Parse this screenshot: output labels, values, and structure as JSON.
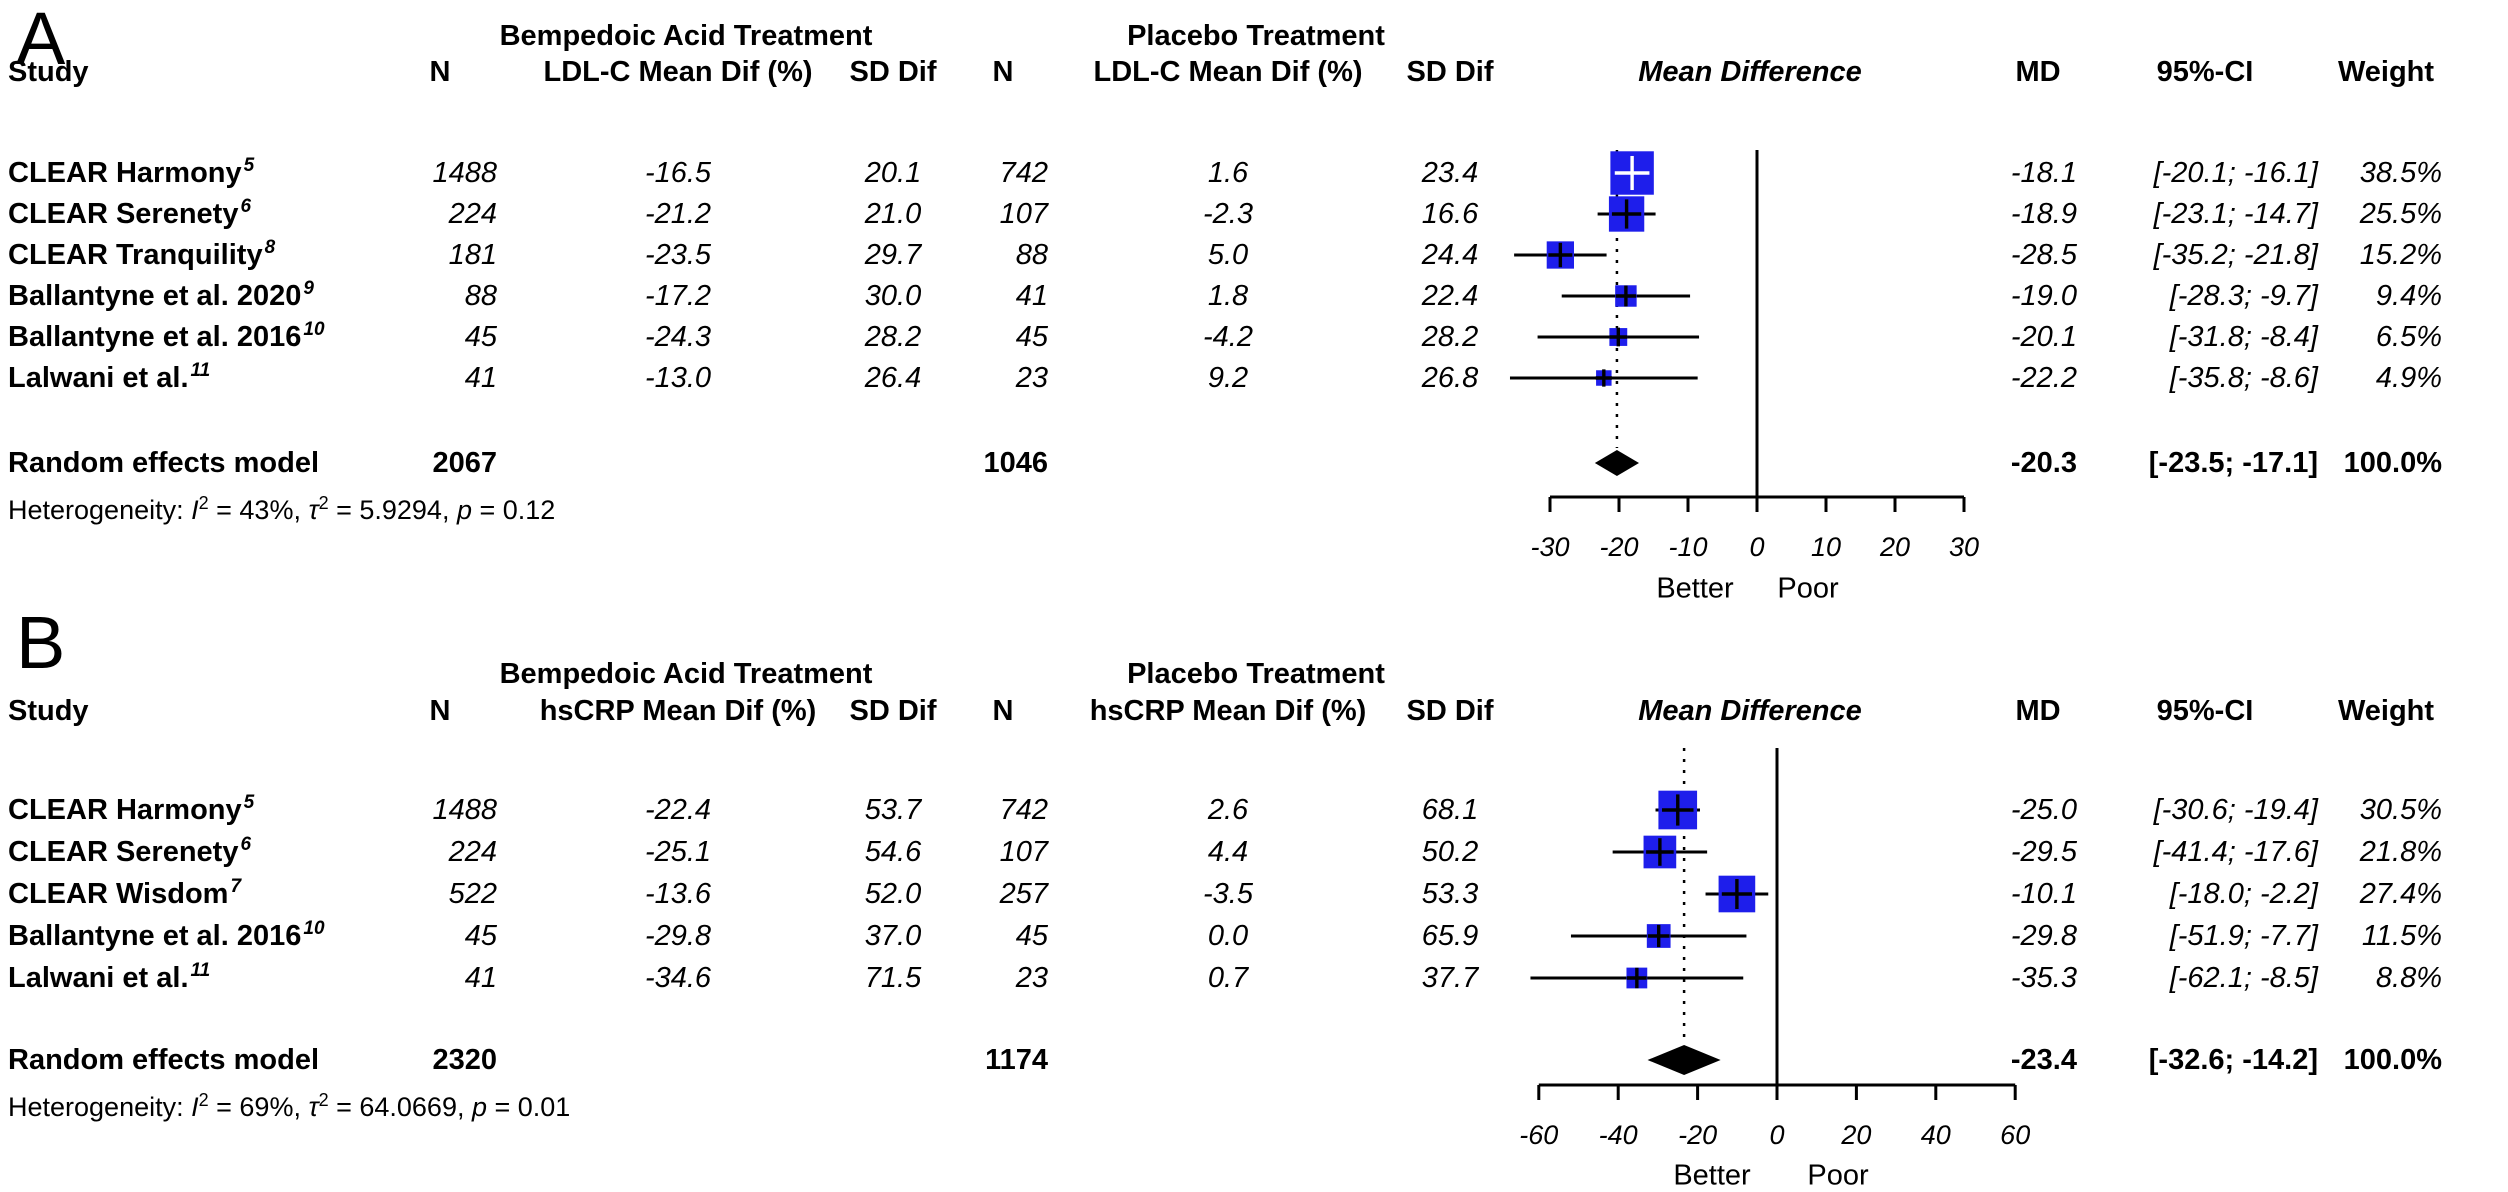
{
  "square_color": "#1E1EEB",
  "chart_data": [
    {
      "type": "forest",
      "panel_label": "A",
      "outcome": "LDL-C",
      "group1": "Bempedoic Acid Treatment",
      "group2": "Placebo Treatment",
      "columns": {
        "study": "Study",
        "n1": "N",
        "mean1": "LDL-C Mean Dif (%)",
        "sd1": "SD Dif",
        "n2": "N",
        "mean2": "LDL-C Mean Dif (%)",
        "sd2": "SD Dif",
        "plot": "Mean Difference",
        "md": "MD",
        "ci": "95%-CI",
        "weight": "Weight"
      },
      "studies": [
        {
          "name": "CLEAR Harmony",
          "ref": "5",
          "n1": "1488",
          "mean1": "-16.5",
          "sd1": "20.1",
          "n2": "742",
          "mean2": "1.6",
          "sd2": "23.4",
          "md": -18.1,
          "ci_low": -20.1,
          "ci_high": -16.1,
          "weight_pct": 38.5,
          "md_text": "-18.1",
          "ci_text": "[-20.1; -16.1]",
          "weight_text": "38.5%"
        },
        {
          "name": "CLEAR Serenety",
          "ref": "6",
          "n1": "224",
          "mean1": "-21.2",
          "sd1": "21.0",
          "n2": "107",
          "mean2": "-2.3",
          "sd2": "16.6",
          "md": -18.9,
          "ci_low": -23.1,
          "ci_high": -14.7,
          "weight_pct": 25.5,
          "md_text": "-18.9",
          "ci_text": "[-23.1; -14.7]",
          "weight_text": "25.5%"
        },
        {
          "name": "CLEAR Tranquility",
          "ref": "8",
          "n1": "181",
          "mean1": "-23.5",
          "sd1": "29.7",
          "n2": "88",
          "mean2": "5.0",
          "sd2": "24.4",
          "md": -28.5,
          "ci_low": -35.2,
          "ci_high": -21.8,
          "weight_pct": 15.2,
          "md_text": "-28.5",
          "ci_text": "[-35.2; -21.8]",
          "weight_text": "15.2%"
        },
        {
          "name": "Ballantyne et al. 2020",
          "ref": "9",
          "n1": "88",
          "mean1": "-17.2",
          "sd1": "30.0",
          "n2": "41",
          "mean2": "1.8",
          "sd2": "22.4",
          "md": -19.0,
          "ci_low": -28.3,
          "ci_high": -9.7,
          "weight_pct": 9.4,
          "md_text": "-19.0",
          "ci_text": "[-28.3; -9.7]",
          "weight_text": "9.4%"
        },
        {
          "name": "Ballantyne et al. 2016",
          "ref": "10",
          "n1": "45",
          "mean1": "-24.3",
          "sd1": "28.2",
          "n2": "45",
          "mean2": "-4.2",
          "sd2": "28.2",
          "md": -20.1,
          "ci_low": -31.8,
          "ci_high": -8.4,
          "weight_pct": 6.5,
          "md_text": "-20.1",
          "ci_text": "[-31.8; -8.4]",
          "weight_text": "6.5%"
        },
        {
          "name": "Lalwani et al.",
          "ref": "11",
          "n1": "41",
          "mean1": "-13.0",
          "sd1": "26.4",
          "n2": "23",
          "mean2": "9.2",
          "sd2": "26.8",
          "md": -22.2,
          "ci_low": -35.8,
          "ci_high": -8.6,
          "weight_pct": 4.9,
          "md_text": "-22.2",
          "ci_text": "[-35.8; -8.6]",
          "weight_text": "4.9%"
        }
      ],
      "summary": {
        "label": "Random effects model",
        "n1": "2067",
        "n2": "1046",
        "md": -20.3,
        "ci_low": -23.5,
        "ci_high": -17.1,
        "md_text": "-20.3",
        "ci_text": "[-23.5; -17.1]",
        "weight_text": "100.0%"
      },
      "heterogeneity": {
        "prefix": "Heterogeneity: ",
        "i2": "43%",
        "tau2": "5.9294",
        "p": "0.12"
      },
      "axis": {
        "min": -30,
        "max": 30,
        "ticks": [
          -30,
          -20,
          -10,
          0,
          10,
          20,
          30
        ],
        "left_label": "Better",
        "right_label": "Poor"
      }
    },
    {
      "type": "forest",
      "panel_label": "B",
      "outcome": "hsCRP",
      "group1": "Bempedoic Acid Treatment",
      "group2": "Placebo Treatment",
      "columns": {
        "study": "Study",
        "n1": "N",
        "mean1": "hsCRP Mean Dif (%)",
        "sd1": "SD Dif",
        "n2": "N",
        "mean2": "hsCRP Mean Dif (%)",
        "sd2": "SD Dif",
        "plot": "Mean Difference",
        "md": "MD",
        "ci": "95%-CI",
        "weight": "Weight"
      },
      "studies": [
        {
          "name": "CLEAR Harmony",
          "ref": "5",
          "n1": "1488",
          "mean1": "-22.4",
          "sd1": "53.7",
          "n2": "742",
          "mean2": "2.6",
          "sd2": "68.1",
          "md": -25.0,
          "ci_low": -30.6,
          "ci_high": -19.4,
          "weight_pct": 30.5,
          "md_text": "-25.0",
          "ci_text": "[-30.6; -19.4]",
          "weight_text": "30.5%"
        },
        {
          "name": "CLEAR Serenety",
          "ref": "6",
          "n1": "224",
          "mean1": "-25.1",
          "sd1": "54.6",
          "n2": "107",
          "mean2": "4.4",
          "sd2": "50.2",
          "md": -29.5,
          "ci_low": -41.4,
          "ci_high": -17.6,
          "weight_pct": 21.8,
          "md_text": "-29.5",
          "ci_text": "[-41.4; -17.6]",
          "weight_text": "21.8%"
        },
        {
          "name": "CLEAR Wisdom",
          "ref": "7",
          "n1": "522",
          "mean1": "-13.6",
          "sd1": "52.0",
          "n2": "257",
          "mean2": "-3.5",
          "sd2": "53.3",
          "md": -10.1,
          "ci_low": -18.0,
          "ci_high": -2.2,
          "weight_pct": 27.4,
          "md_text": "-10.1",
          "ci_text": "[-18.0; -2.2]",
          "weight_text": "27.4%"
        },
        {
          "name": "Ballantyne et al. 2016",
          "ref": "10",
          "n1": "45",
          "mean1": "-29.8",
          "sd1": "37.0",
          "n2": "45",
          "mean2": "0.0",
          "sd2": "65.9",
          "md": -29.8,
          "ci_low": -51.9,
          "ci_high": -7.7,
          "weight_pct": 11.5,
          "md_text": "-29.8",
          "ci_text": "[-51.9; -7.7]",
          "weight_text": "11.5%"
        },
        {
          "name": "Lalwani et al.",
          "ref": "11",
          "n1": "41",
          "mean1": "-34.6",
          "sd1": "71.5",
          "n2": "23",
          "mean2": "0.7",
          "sd2": "37.7",
          "md": -35.3,
          "ci_low": -62.1,
          "ci_high": -8.5,
          "weight_pct": 8.8,
          "md_text": "-35.3",
          "ci_text": "[-62.1; -8.5]",
          "weight_text": "8.8%"
        }
      ],
      "summary": {
        "label": "Random effects model",
        "n1": "2320",
        "n2": "1174",
        "md": -23.4,
        "ci_low": -32.6,
        "ci_high": -14.2,
        "md_text": "-23.4",
        "ci_text": "[-32.6; -14.2]",
        "weight_text": "100.0%"
      },
      "heterogeneity": {
        "prefix": "Heterogeneity: ",
        "i2": "69%",
        "tau2": "64.0669",
        "p": "0.01"
      },
      "axis": {
        "min": -60,
        "max": 60,
        "ticks": [
          -60,
          -40,
          -20,
          0,
          20,
          40,
          60
        ],
        "left_label": "Better",
        "right_label": "Poor"
      }
    }
  ]
}
